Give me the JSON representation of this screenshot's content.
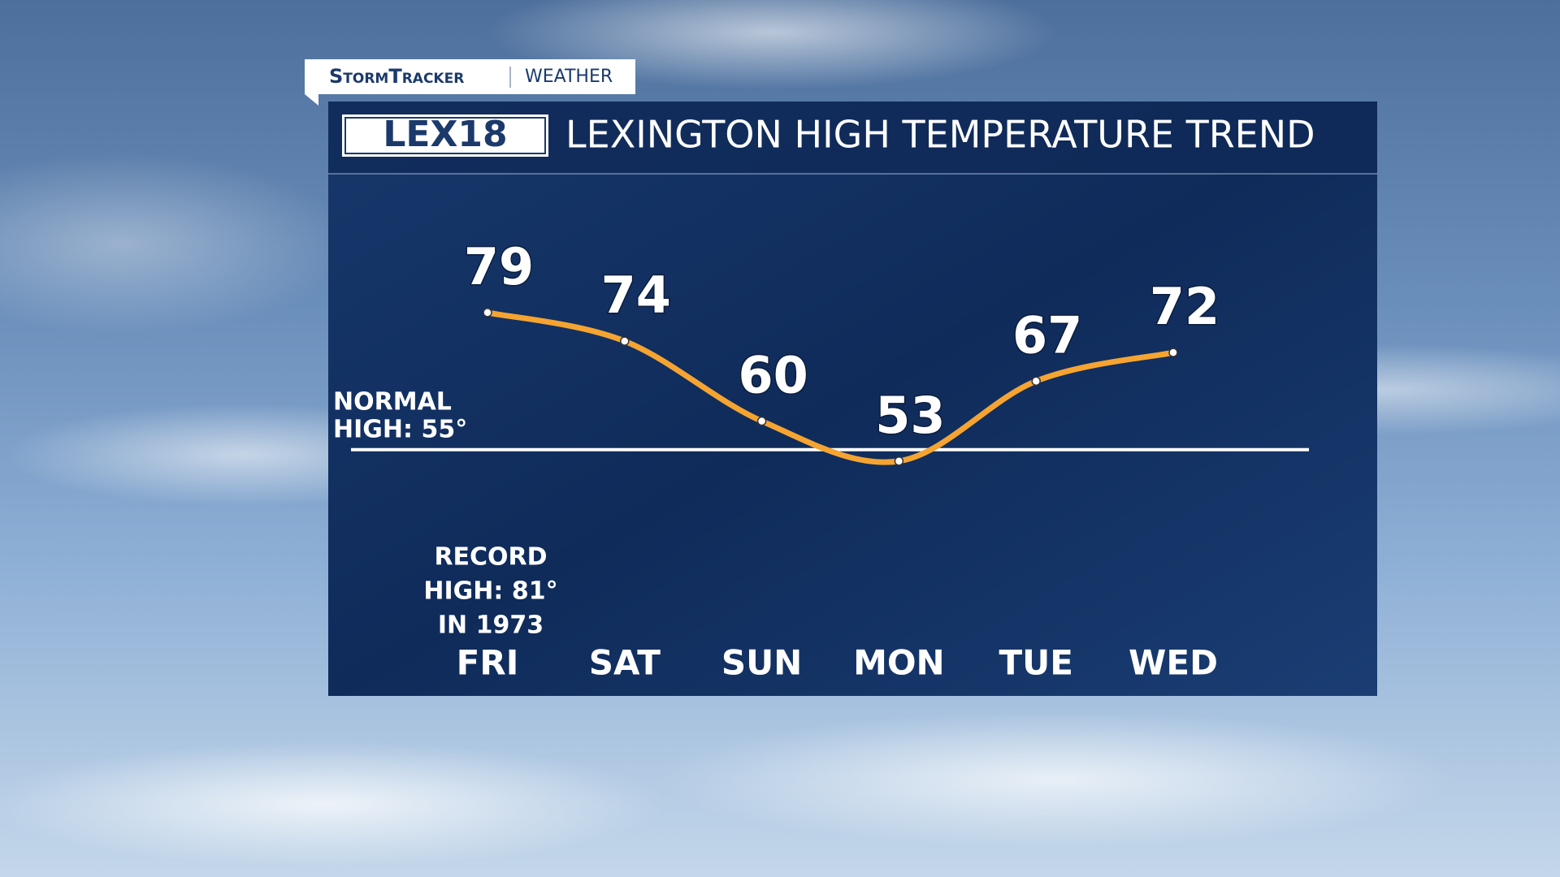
{
  "brand": {
    "name": "StormTracker",
    "section": "WEATHER"
  },
  "logo": "LEX18",
  "chart_data": {
    "type": "line",
    "title": "LEXINGTON HIGH TEMPERATURE TREND",
    "categories": [
      "FRI",
      "SAT",
      "SUN",
      "MON",
      "TUE",
      "WED"
    ],
    "values": [
      79,
      74,
      60,
      53,
      67,
      72
    ],
    "color": "#f5a431",
    "ylim": [
      22,
      103
    ],
    "normal_high": {
      "value": 55,
      "label": [
        "NORMAL",
        "HIGH: 55°"
      ]
    },
    "record_high": [
      "RECORD",
      "HIGH: 81°",
      "IN 1973"
    ]
  }
}
